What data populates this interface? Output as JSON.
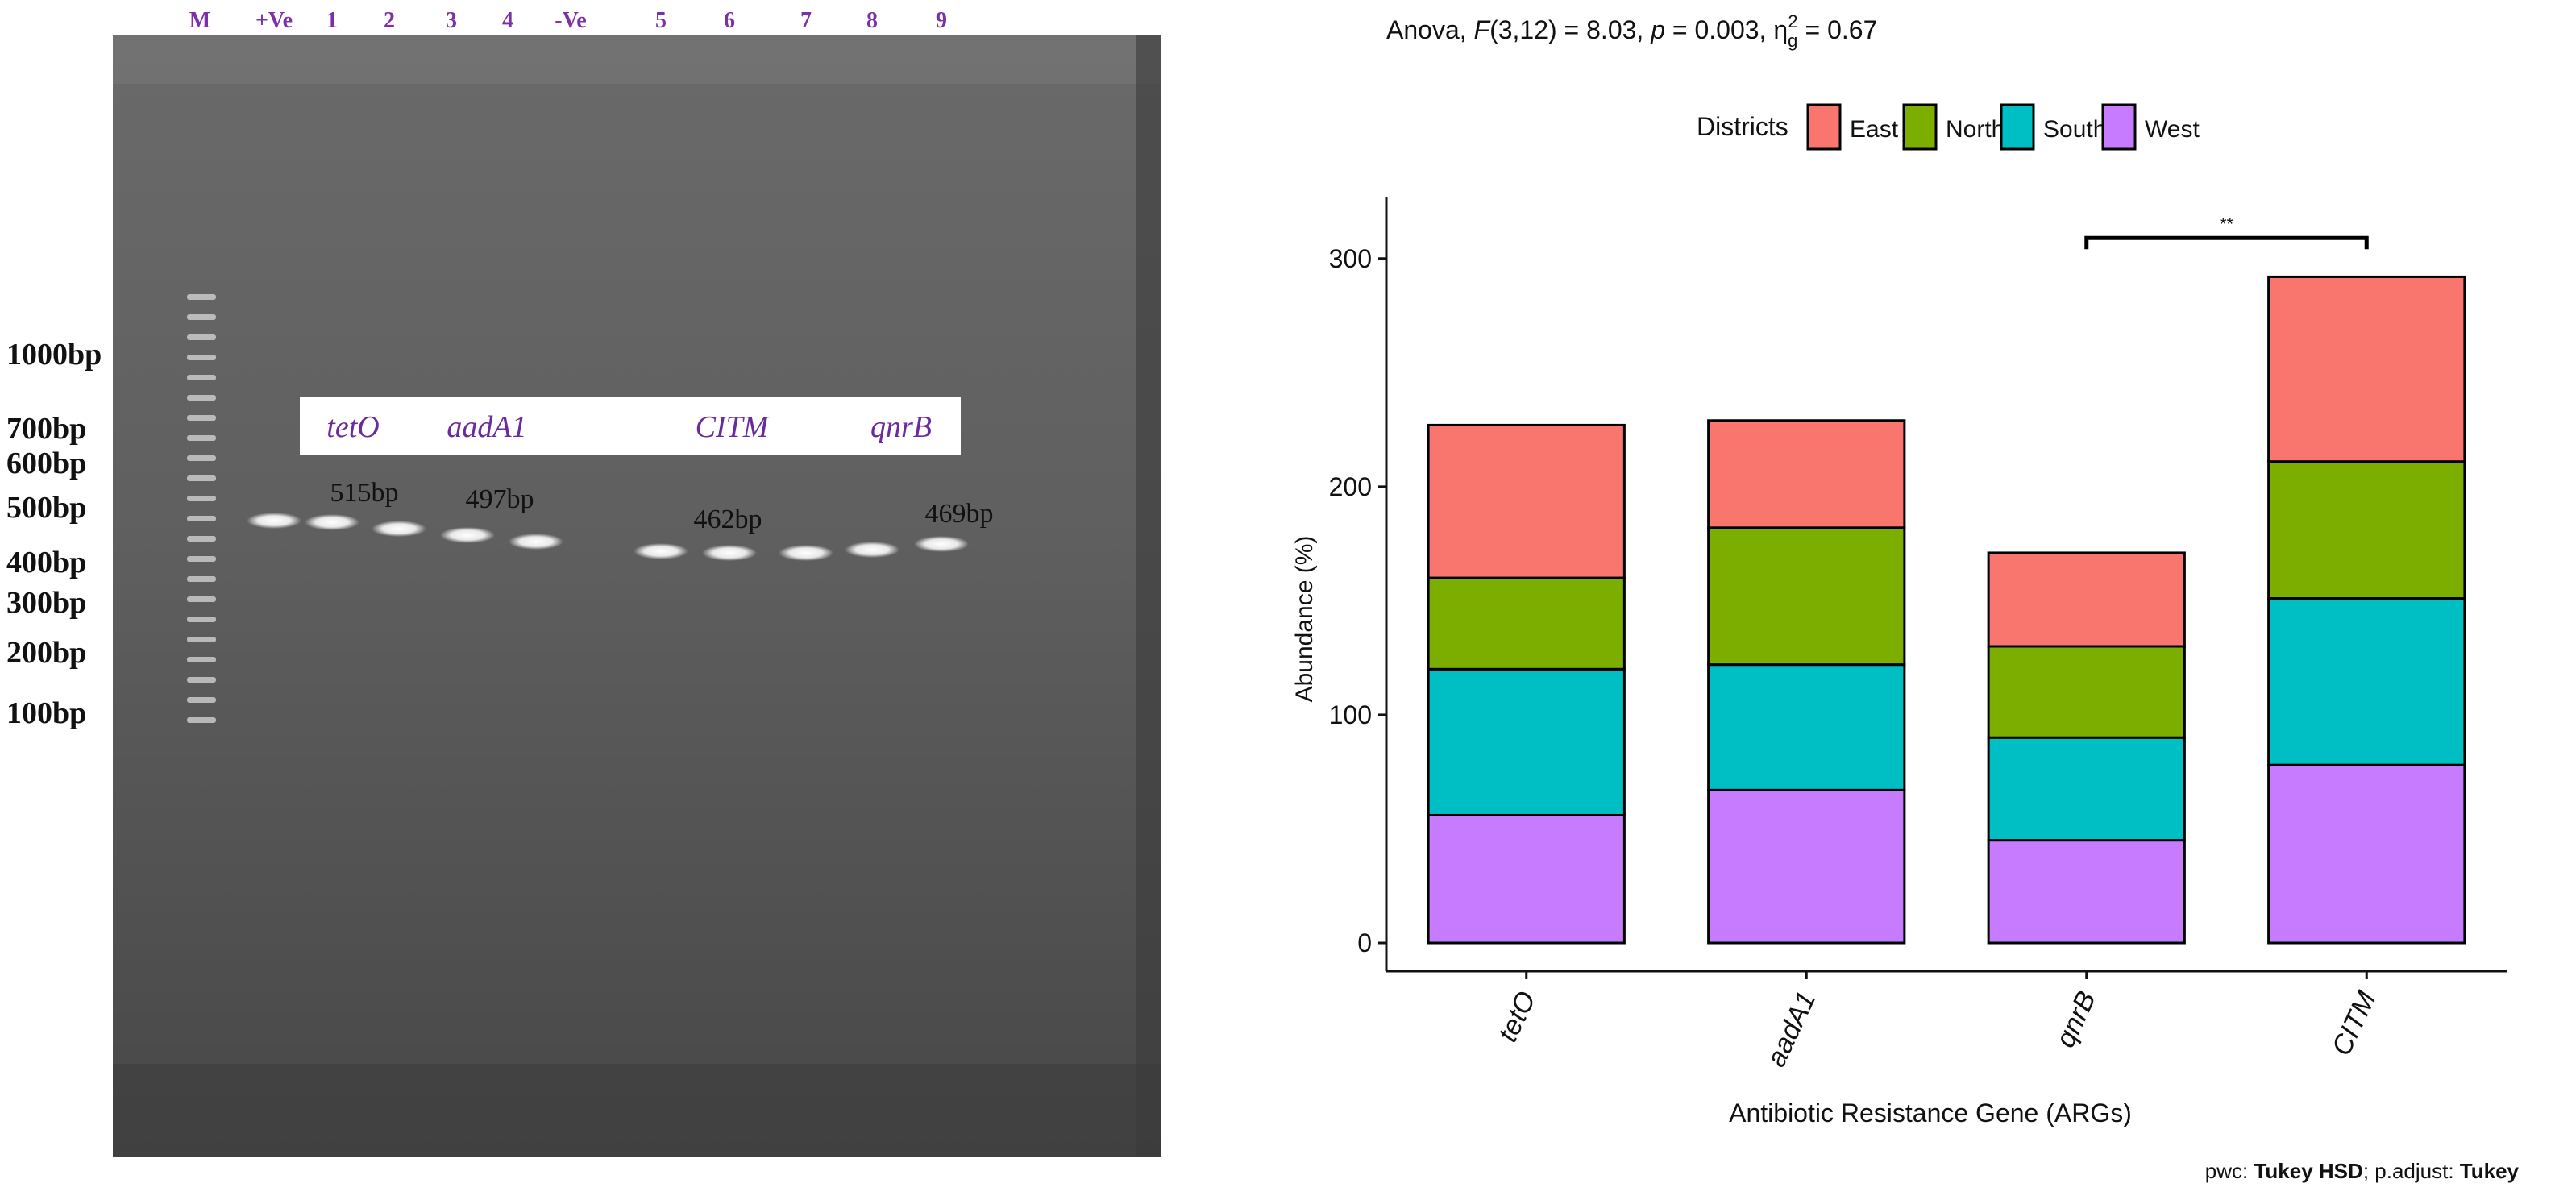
{
  "gel": {
    "lane_labels": [
      "M",
      "+Ve",
      "1",
      "2",
      "3",
      "4",
      "-Ve",
      "5",
      "6",
      "7",
      "8",
      "9"
    ],
    "ladder_labels": [
      "1000bp",
      "700bp",
      "600bp",
      "500bp",
      "400bp",
      "300bp",
      "200bp",
      "100bp"
    ],
    "gene_labels": [
      "tetO",
      "aadA1",
      "CITM",
      "qnrB"
    ],
    "band_size_labels": [
      "515bp",
      "497bp",
      "462bp",
      "469bp"
    ],
    "colors": {
      "lane_label": "#7b2fa8",
      "gene_label": "#6a2b9e",
      "gel_bg": "#5e5e5e"
    }
  },
  "chart": {
    "stats_prefix": "Anova, ",
    "stats_F": "F",
    "stats_mid1": "(3,12) = 8.03, ",
    "stats_p": "p",
    "stats_mid2": " = 0.003, η",
    "stats_sub": "g",
    "stats_sup": "2",
    "stats_end": " = 0.67",
    "significance": "**",
    "footer_pwc": "pwc: ",
    "footer_pwc_value": "Tukey HSD",
    "footer_padj": "; p.adjust: ",
    "footer_padj_value": "Tukey"
  },
  "chart_data": {
    "type": "bar",
    "stacked": true,
    "categories": [
      "tetO",
      "aadA1",
      "qnrB",
      "CITM"
    ],
    "xlabel": "Antibiotic Resistance Gene (ARGs)",
    "ylabel": "Abundance (%)",
    "ylim": [
      0,
      325
    ],
    "yticks": [
      0,
      100,
      200,
      300
    ],
    "legend_title": "Districts",
    "legend_position": "top",
    "grid": false,
    "series": [
      {
        "name": "West",
        "color": "#C77CFF",
        "values": [
          56,
          67,
          45,
          78
        ]
      },
      {
        "name": "South",
        "color": "#00BFC4",
        "values": [
          64,
          55,
          45,
          73
        ]
      },
      {
        "name": "North",
        "color": "#7CAE00",
        "values": [
          40,
          60,
          40,
          60
        ]
      },
      {
        "name": "East",
        "color": "#F8766D",
        "values": [
          67,
          47,
          41,
          81
        ]
      }
    ],
    "comparison": {
      "from": "qnrB",
      "to": "CITM",
      "label": "**"
    }
  }
}
